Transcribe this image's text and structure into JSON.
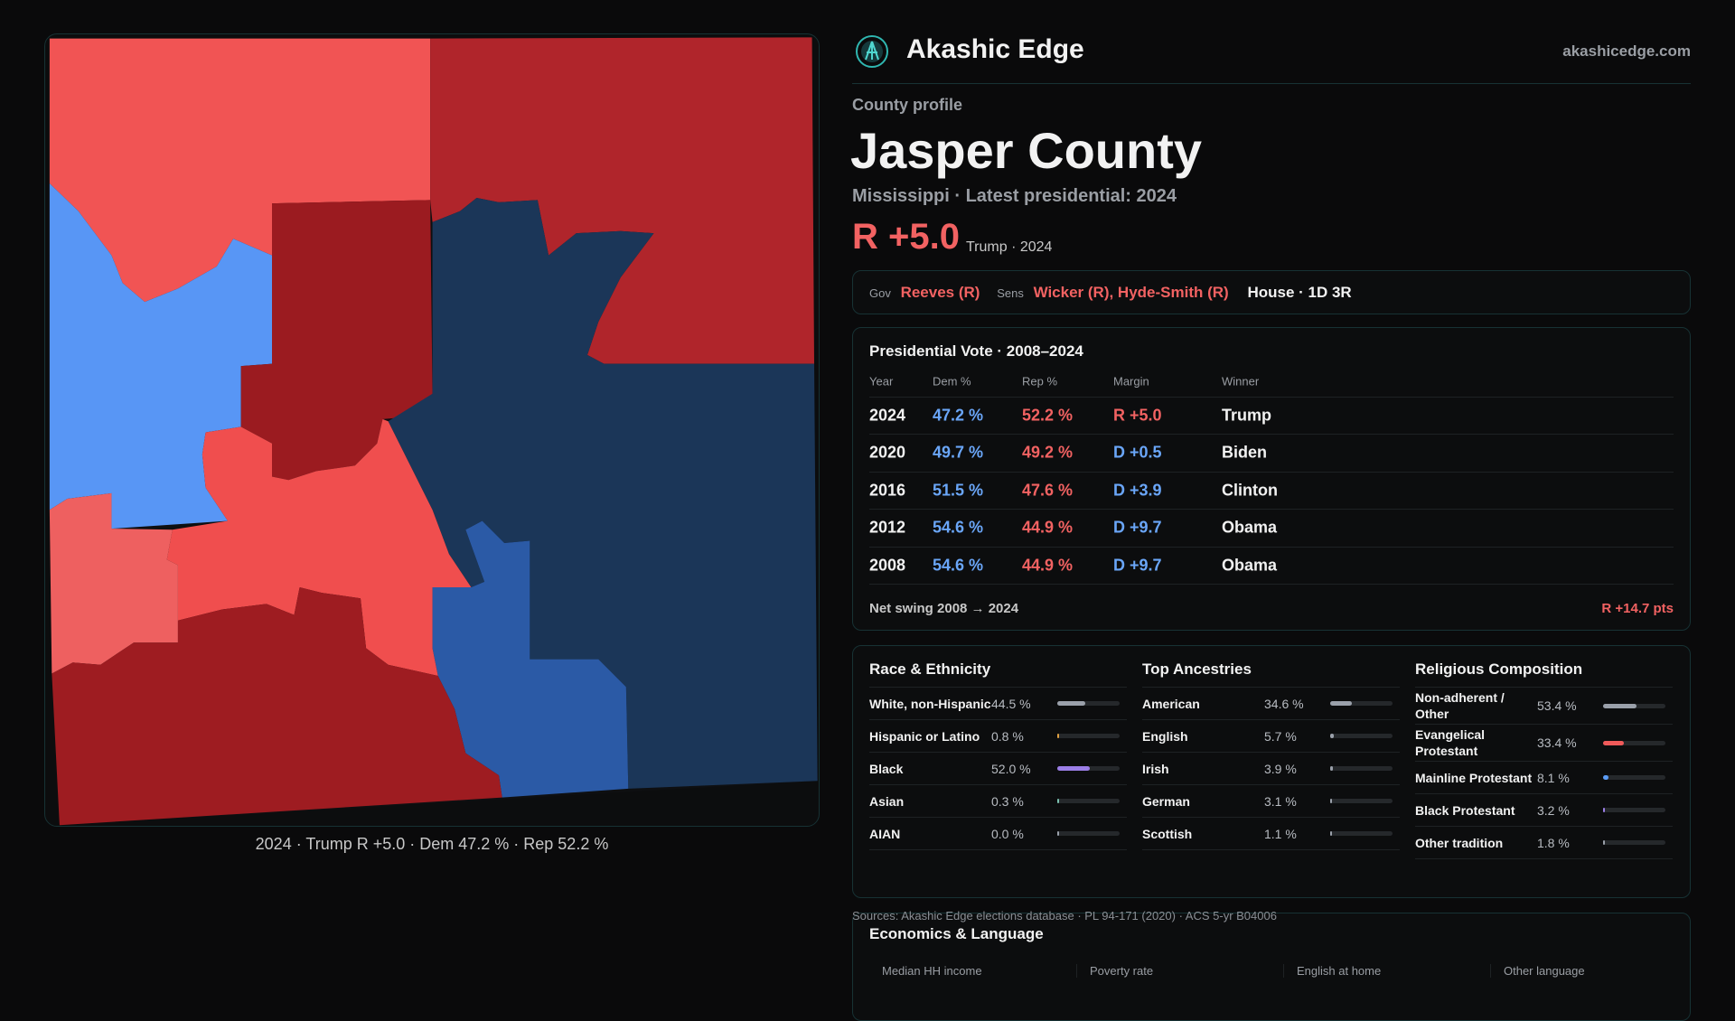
{
  "header": {
    "brand": "Akashic Edge",
    "site": "akashicedge.com"
  },
  "profile": {
    "kicker": "County profile",
    "name": "Jasper County",
    "subtitle": "Mississippi · Latest presidential: 2024",
    "margin": "R +5.0",
    "margin_note": "Trump · 2024"
  },
  "officials": {
    "gov_label": "Gov",
    "gov": "Reeves (R)",
    "sens_label": "Sens",
    "sens": "Wicker (R), Hyde-Smith (R)",
    "house": "House · 1D 3R"
  },
  "map": {
    "caption": "2024 · Trump R +5.0 · Dem 47.2 % · Rep 52.2 %"
  },
  "votes": {
    "title": "Presidential Vote · 2008–2024",
    "headers": [
      "Year",
      "Dem %",
      "Rep %",
      "Margin",
      "Winner"
    ],
    "rows": [
      [
        "2024",
        "47.2 %",
        "52.2 %",
        "R +5.0",
        "Trump"
      ],
      [
        "2020",
        "49.7 %",
        "49.2 %",
        "D +0.5",
        "Biden"
      ],
      [
        "2016",
        "51.5 %",
        "47.6 %",
        "D +3.9",
        "Clinton"
      ],
      [
        "2012",
        "54.6 %",
        "44.9 %",
        "D +9.7",
        "Obama"
      ],
      [
        "2008",
        "54.6 %",
        "44.9 %",
        "D +9.7",
        "Obama"
      ]
    ],
    "swing_label": "Net swing 2008 → 2024",
    "swing": "R +14.7 pts"
  },
  "panels": [
    {
      "title": "Race & Ethnicity",
      "rows": [
        {
          "name": "White, non-Hispanic",
          "value": 44.5,
          "label": "44.5 %",
          "color": "#9aa0aa"
        },
        {
          "name": "Hispanic or Latino",
          "value": 0.8,
          "label": "0.8 %",
          "color": "#e0a040"
        },
        {
          "name": "Black",
          "value": 52.0,
          "label": "52.0 %",
          "color": "#9b7ee6"
        },
        {
          "name": "Asian",
          "value": 0.3,
          "label": "0.3 %",
          "color": "#7ac0b0"
        },
        {
          "name": "AIAN",
          "value": 0.0,
          "label": "0.0 %",
          "color": "#9aa0aa"
        }
      ]
    },
    {
      "title": "Top Ancestries",
      "rows": [
        {
          "name": "American",
          "value": 34.6,
          "label": "34.6 %",
          "color": "#9aa0aa"
        },
        {
          "name": "English",
          "value": 5.7,
          "label": "5.7 %",
          "color": "#9aa0aa"
        },
        {
          "name": "Irish",
          "value": 3.9,
          "label": "3.9 %",
          "color": "#9aa0aa"
        },
        {
          "name": "German",
          "value": 3.1,
          "label": "3.1 %",
          "color": "#9aa0aa"
        },
        {
          "name": "Scottish",
          "value": 1.1,
          "label": "1.1 %",
          "color": "#9aa0aa"
        }
      ]
    },
    {
      "title": "Religious Composition",
      "rows": [
        {
          "name": "Non-adherent / Other",
          "value": 53.4,
          "label": "53.4 %",
          "color": "#9aa0aa"
        },
        {
          "name": "Evangelical Protestant",
          "value": 33.4,
          "label": "33.4 %",
          "color": "#f05a5a"
        },
        {
          "name": "Mainline Protestant",
          "value": 8.1,
          "label": "8.1 %",
          "color": "#5b9cf5"
        },
        {
          "name": "Black Protestant",
          "value": 3.2,
          "label": "3.2 %",
          "color": "#9b7ee6"
        },
        {
          "name": "Other tradition",
          "value": 1.8,
          "label": "1.8 %",
          "color": "#9aa0aa"
        }
      ]
    }
  ],
  "sources": "Sources: Akashic Edge elections database · PL 94-171 (2020) · ACS 5-yr B04006",
  "economics": {
    "title": "Economics & Language",
    "columns": [
      "Median HH income",
      "Poverty rate",
      "English at home",
      "Other language"
    ]
  }
}
